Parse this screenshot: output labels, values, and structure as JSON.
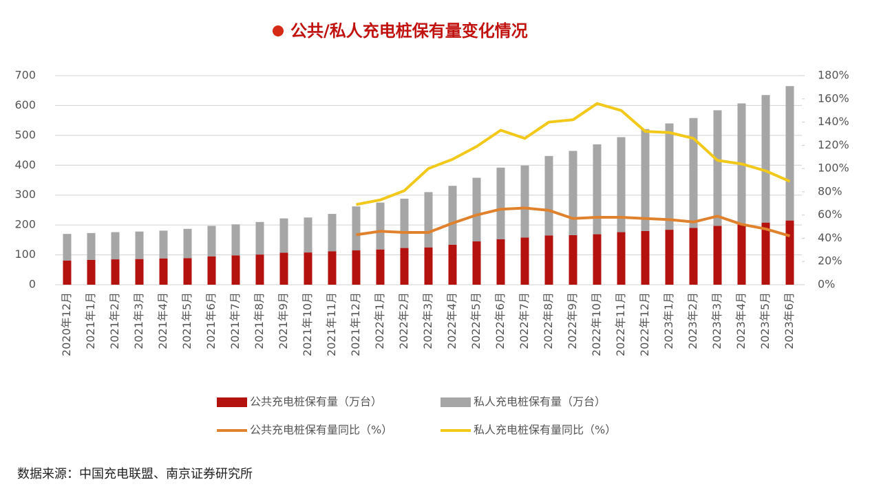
{
  "chart_data": {
    "type": "bar-line",
    "title": "公共/私人充电桩保有量变化情况",
    "source": "数据来源：中国充电联盟、南京证券研究所",
    "categories": [
      "2020年12月",
      "2021年1月",
      "2021年2月",
      "2021年3月",
      "2021年4月",
      "2021年5月",
      "2021年6月",
      "2021年7月",
      "2021年8月",
      "2021年9月",
      "2021年10月",
      "2021年11月",
      "2021年12月",
      "2022年1月",
      "2022年2月",
      "2022年3月",
      "2022年4月",
      "2022年5月",
      "2022年6月",
      "2022年7月",
      "2022年8月",
      "2022年9月",
      "2022年10月",
      "2022年11月",
      "2022年12月",
      "2023年1月",
      "2023年2月",
      "2023年3月",
      "2023年4月",
      "2023年5月",
      "2023年6月"
    ],
    "series": [
      {
        "name": "公共充电桩保有量（万台）",
        "kind": "bar",
        "stack": true,
        "color": "#b4120f",
        "values": [
          81,
          83,
          85,
          86,
          88,
          89,
          95,
          98,
          101,
          107,
          108,
          112,
          115,
          118,
          123,
          125,
          134,
          145,
          152,
          158,
          165,
          166,
          169,
          176,
          180,
          184,
          190,
          197,
          202,
          208,
          215
        ]
      },
      {
        "name": "私人充电桩保有量（万台）",
        "kind": "bar",
        "stack": true,
        "color": "#a6a6a6",
        "values": [
          89,
          90,
          91,
          92,
          93,
          98,
          102,
          104,
          109,
          115,
          117,
          125,
          147,
          157,
          165,
          185,
          197,
          213,
          240,
          241,
          266,
          282,
          301,
          318,
          341,
          356,
          368,
          387,
          405,
          427,
          450
        ]
      },
      {
        "name": "公共充电桩保有量同比（%）",
        "kind": "line",
        "axis": "y2",
        "color": "#e0812e",
        "values": [
          null,
          null,
          null,
          null,
          null,
          null,
          null,
          null,
          null,
          null,
          null,
          null,
          43,
          46,
          45,
          45,
          53,
          60,
          65,
          66,
          64,
          57,
          58,
          58,
          57,
          56,
          54,
          59,
          52,
          48,
          42
        ]
      },
      {
        "name": "私人充电桩保有量同比（%）",
        "kind": "line",
        "axis": "y2",
        "color": "#f2c81a",
        "values": [
          null,
          null,
          null,
          null,
          null,
          null,
          null,
          null,
          null,
          null,
          null,
          null,
          69,
          73,
          81,
          100,
          108,
          119,
          133,
          126,
          140,
          142,
          156,
          150,
          132,
          131,
          126,
          107,
          104,
          98,
          89
        ]
      }
    ],
    "ylim": [
      0,
      700
    ],
    "yticks": [
      0,
      100,
      200,
      300,
      400,
      500,
      600,
      700
    ],
    "y2lim": [
      0,
      180
    ],
    "y2ticks": [
      {
        "value": 0,
        "label": "0%"
      },
      {
        "value": 20,
        "label": "20%"
      },
      {
        "value": 40,
        "label": "40%"
      },
      {
        "value": 60,
        "label": "60%"
      },
      {
        "value": 80,
        "label": "80%"
      },
      {
        "value": 100,
        "label": "100%"
      },
      {
        "value": 120,
        "label": "120%"
      },
      {
        "value": 140,
        "label": "140%"
      },
      {
        "value": 160,
        "label": "160%"
      },
      {
        "value": 180,
        "label": "180%"
      }
    ],
    "grid": true
  }
}
